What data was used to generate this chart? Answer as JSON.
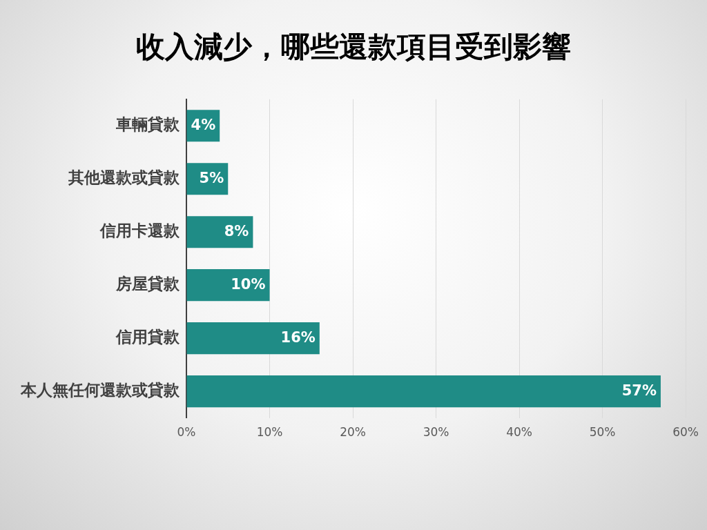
{
  "chart_data": {
    "type": "bar",
    "orientation": "horizontal",
    "title": "收入減少，哪些還款項目受到影響",
    "categories": [
      "車輛貸款",
      "其他還款或貸款",
      "信用卡還款",
      "房屋貸款",
      "信用貸款",
      "本人無任何還款或貸款"
    ],
    "values": [
      4,
      5,
      8,
      10,
      16,
      57
    ],
    "color": "#1f8c86",
    "value_labels": [
      "4%",
      "5%",
      "8%",
      "10%",
      "16%",
      "57%"
    ],
    "xlim": [
      0,
      60
    ],
    "xticks": [
      {
        "value": 0,
        "label": "0%"
      },
      {
        "value": 10,
        "label": "10%"
      },
      {
        "value": 20,
        "label": "20%"
      },
      {
        "value": 30,
        "label": "30%"
      },
      {
        "value": 40,
        "label": "40%"
      },
      {
        "value": 50,
        "label": "50%"
      },
      {
        "value": 60,
        "label": "60%"
      }
    ],
    "grid": "x",
    "legend": false
  }
}
